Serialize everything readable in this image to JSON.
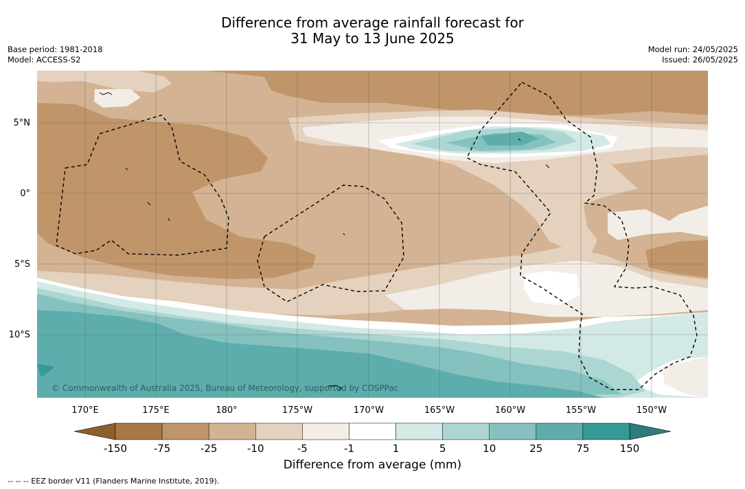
{
  "header": {
    "title_line1": "Difference from average rainfall forecast for",
    "title_line2": "31 May to 13 June 2025",
    "base_period": "Base period: 1981-2018",
    "model": "Model: ACCESS-S2",
    "model_run": "Model run: 24/05/2025",
    "issued": "Issued: 26/05/2025"
  },
  "map": {
    "lat_labels": [
      "5°N",
      "0°",
      "5°S",
      "10°S"
    ],
    "lon_labels": [
      "170°E",
      "175°E",
      "180°",
      "175°W",
      "170°W",
      "165°W",
      "160°W",
      "155°W",
      "150°W"
    ],
    "copyright": "© Commonwealth of Australia 2025, Bureau of Meteorology, supported by COSPPac",
    "colors": {
      "dry_150": "#a87942",
      "dry_75": "#c0956a",
      "dry_25": "#d3b393",
      "dry_10": "#e4d1be",
      "dry_5": "#f3ede7",
      "neutral": "#ffffff",
      "wet_1": "#d3e9e6",
      "wet_5": "#acd6d2",
      "wet_10": "#85c2bf",
      "wet_25": "#5dadac",
      "wet_75": "#359996",
      "wet_150": "#2e7c7b"
    }
  },
  "colorbar": {
    "ticks": [
      "-150",
      "-75",
      "-25",
      "-10",
      "-5",
      "-1",
      "1",
      "5",
      "10",
      "25",
      "75",
      "150"
    ],
    "colors": [
      "#a87942",
      "#c0956a",
      "#d3b393",
      "#e4d1be",
      "#f3ede7",
      "#ffffff",
      "#d3e9e6",
      "#acd6d2",
      "#85c2bf",
      "#5dadac",
      "#359996"
    ],
    "end_left": "#8e5f2c",
    "end_right": "#2e7c7b",
    "label": "Difference from average (mm)"
  },
  "footnote": "--  --  -- EEZ border V11 (Flanders Marine Institute, 2019)."
}
